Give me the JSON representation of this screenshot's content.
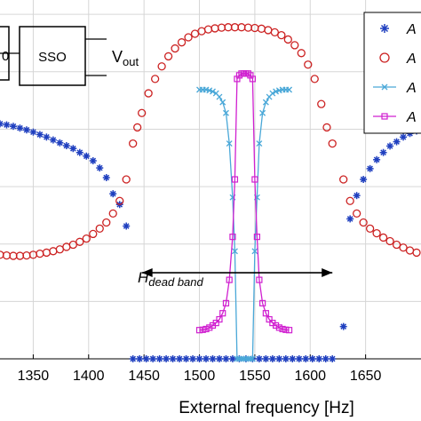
{
  "chart_data": {
    "type": "scatter",
    "xlabel": "External frequency [Hz]",
    "ylabel": "",
    "xlim": [
      1320,
      1700
    ],
    "x_ticks": [
      1350,
      1400,
      1450,
      1500,
      1550,
      1600,
      1650
    ],
    "x_tick_labels": [
      "1350",
      "1400",
      "1450",
      "1500",
      "1550",
      "1600",
      "1650"
    ],
    "grid": true,
    "legend_position": "top-right",
    "legend": [
      {
        "label": "A",
        "marker": "star",
        "color": "#1f3fbf"
      },
      {
        "label": "A",
        "marker": "circle",
        "color": "#cc2222"
      },
      {
        "label": "A",
        "marker": "x",
        "color": "#4aa8d8"
      },
      {
        "label": "A",
        "marker": "square",
        "color": "#d020d0"
      }
    ],
    "annotation": {
      "main": "H",
      "sub": "dead band",
      "span": [
        1448,
        1620
      ],
      "y_level": 0.24
    },
    "inset": {
      "block_label": "SSO",
      "left_label": "0",
      "output_label": "V",
      "output_sub": "out"
    },
    "series": [
      {
        "marker": "star",
        "color": "#1f3fbf",
        "x": [
          1320,
          1326,
          1332,
          1338,
          1344,
          1350,
          1356,
          1362,
          1368,
          1374,
          1380,
          1386,
          1392,
          1398,
          1404,
          1410,
          1416,
          1422,
          1428,
          1434,
          1440,
          1446,
          1452,
          1458,
          1464,
          1470,
          1476,
          1482,
          1488,
          1494,
          1500,
          1506,
          1512,
          1518,
          1524,
          1530,
          1536,
          1542,
          1548,
          1554,
          1560,
          1566,
          1572,
          1578,
          1584,
          1590,
          1596,
          1602,
          1608,
          1614,
          1620,
          1630,
          1636,
          1642,
          1648,
          1654,
          1660,
          1666,
          1672,
          1678,
          1684,
          1690,
          1696
        ],
        "y": [
          0.655,
          0.652,
          0.648,
          0.643,
          0.638,
          0.632,
          0.625,
          0.618,
          0.61,
          0.602,
          0.594,
          0.586,
          0.575,
          0.565,
          0.552,
          0.532,
          0.505,
          0.46,
          0.43,
          0.37,
          0.0,
          0.0,
          0.0,
          0.0,
          0.0,
          0.0,
          0.0,
          0.0,
          0.0,
          0.0,
          0.0,
          0.0,
          0.0,
          0.0,
          0.0,
          0.0,
          0.0,
          0.0,
          0.0,
          0.0,
          0.0,
          0.0,
          0.0,
          0.0,
          0.0,
          0.0,
          0.0,
          0.0,
          0.0,
          0.0,
          0.0,
          0.09,
          0.39,
          0.455,
          0.5,
          0.53,
          0.555,
          0.575,
          0.593,
          0.605,
          0.618,
          0.628,
          0.635
        ]
      },
      {
        "marker": "circle",
        "color": "#cc2222",
        "x": [
          1320,
          1326,
          1332,
          1338,
          1344,
          1350,
          1356,
          1362,
          1368,
          1374,
          1380,
          1386,
          1392,
          1398,
          1404,
          1410,
          1416,
          1422,
          1428,
          1434,
          1440,
          1444,
          1448,
          1454,
          1460,
          1466,
          1472,
          1478,
          1484,
          1490,
          1496,
          1502,
          1508,
          1514,
          1520,
          1526,
          1532,
          1538,
          1544,
          1550,
          1556,
          1562,
          1568,
          1574,
          1580,
          1586,
          1592,
          1598,
          1604,
          1610,
          1615,
          1620,
          1630,
          1636,
          1642,
          1648,
          1654,
          1660,
          1666,
          1672,
          1678,
          1684,
          1690,
          1696
        ],
        "y": [
          0.29,
          0.288,
          0.287,
          0.287,
          0.288,
          0.29,
          0.293,
          0.296,
          0.3,
          0.305,
          0.312,
          0.318,
          0.326,
          0.335,
          0.348,
          0.363,
          0.38,
          0.405,
          0.44,
          0.5,
          0.6,
          0.645,
          0.685,
          0.74,
          0.78,
          0.815,
          0.843,
          0.865,
          0.882,
          0.896,
          0.906,
          0.913,
          0.918,
          0.921,
          0.923,
          0.924,
          0.924,
          0.924,
          0.923,
          0.922,
          0.92,
          0.916,
          0.91,
          0.902,
          0.89,
          0.874,
          0.852,
          0.82,
          0.78,
          0.71,
          0.645,
          0.6,
          0.5,
          0.44,
          0.405,
          0.38,
          0.363,
          0.35,
          0.338,
          0.328,
          0.318,
          0.31,
          0.302,
          0.296
        ]
      },
      {
        "marker": "x",
        "color": "#4aa8d8",
        "x": [
          1500,
          1503,
          1506,
          1509,
          1512,
          1515,
          1518,
          1521,
          1524,
          1527,
          1530,
          1532,
          1534,
          1536,
          1538,
          1540,
          1542,
          1544,
          1546,
          1548,
          1550,
          1552,
          1554,
          1557,
          1560,
          1563,
          1566,
          1569,
          1572,
          1575,
          1578,
          1581
        ],
        "y": [
          0.75,
          0.75,
          0.75,
          0.748,
          0.745,
          0.74,
          0.73,
          0.715,
          0.685,
          0.6,
          0.45,
          0.3,
          0.0,
          0.0,
          0.0,
          0.0,
          0.0,
          0.0,
          0.0,
          0.0,
          0.3,
          0.45,
          0.6,
          0.685,
          0.715,
          0.73,
          0.74,
          0.745,
          0.748,
          0.75,
          0.75,
          0.75
        ]
      },
      {
        "marker": "square",
        "color": "#d020d0",
        "x": [
          1500,
          1503,
          1506,
          1509,
          1512,
          1515,
          1518,
          1521,
          1524,
          1527,
          1530,
          1532,
          1534,
          1536,
          1538,
          1540,
          1542,
          1544,
          1546,
          1548,
          1550,
          1552,
          1554,
          1557,
          1560,
          1563,
          1566,
          1569,
          1572,
          1575,
          1578,
          1581
        ],
        "y": [
          0.08,
          0.081,
          0.083,
          0.087,
          0.093,
          0.1,
          0.11,
          0.127,
          0.155,
          0.22,
          0.34,
          0.5,
          0.78,
          0.79,
          0.795,
          0.795,
          0.795,
          0.795,
          0.79,
          0.78,
          0.5,
          0.34,
          0.22,
          0.155,
          0.127,
          0.11,
          0.1,
          0.093,
          0.087,
          0.083,
          0.081,
          0.08
        ]
      }
    ]
  }
}
